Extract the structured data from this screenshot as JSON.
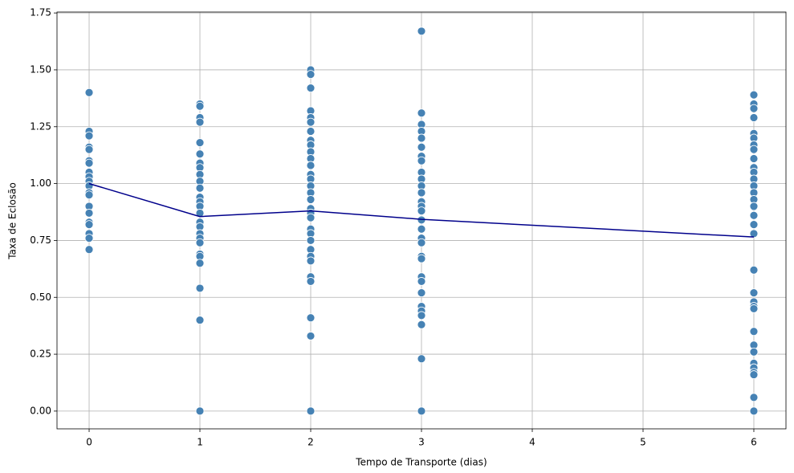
{
  "chart_data": {
    "type": "scatter",
    "xlabel": "Tempo de Transporte (dias)",
    "ylabel": "Taxa de Eclosão",
    "xlim": [
      -0.29,
      6.29
    ],
    "ylim": [
      -0.078,
      1.754
    ],
    "xticks": [
      0,
      1,
      2,
      3,
      4,
      5,
      6
    ],
    "yticks": [
      {
        "value": 0,
        "label": "0.00"
      },
      {
        "value": 0.25,
        "label": "0.25"
      },
      {
        "value": 0.5,
        "label": "0.50"
      },
      {
        "value": 0.75,
        "label": "0.75"
      },
      {
        "value": 1,
        "label": "1.00"
      },
      {
        "value": 1.25,
        "label": "1.25"
      },
      {
        "value": 1.5,
        "label": "1.50"
      },
      {
        "value": 1.75,
        "label": "1.75"
      }
    ],
    "grid": true,
    "series": [
      {
        "type": "scatter",
        "color": "#4682b4",
        "x": [
          0,
          0,
          0,
          0,
          0,
          0,
          0,
          0,
          0,
          0,
          0,
          0,
          0,
          0,
          0,
          0,
          0,
          0,
          0,
          0,
          1,
          1,
          1,
          1,
          1,
          1,
          1,
          1,
          1,
          1,
          1,
          1,
          1,
          1,
          1,
          1,
          1,
          1,
          1,
          1,
          1,
          1,
          1,
          1,
          1,
          1,
          2,
          2,
          2,
          2,
          2,
          2,
          2,
          2,
          2,
          2,
          2,
          2,
          2,
          2,
          2,
          2,
          2,
          2,
          2,
          2,
          2,
          2,
          2,
          2,
          2,
          2,
          2,
          2,
          2,
          2,
          2,
          3,
          3,
          3,
          3,
          3,
          3,
          3,
          3,
          3,
          3,
          3,
          3,
          3,
          3,
          3,
          3,
          3,
          3,
          3,
          3,
          3,
          3,
          3,
          3,
          3,
          3,
          3,
          3,
          3,
          3,
          6,
          6,
          6,
          6,
          6,
          6,
          6,
          6,
          6,
          6,
          6,
          6,
          6,
          6,
          6,
          6,
          6,
          6,
          6,
          6,
          6,
          6,
          6,
          6,
          6,
          6,
          6,
          6,
          6,
          6,
          6,
          6,
          6
        ],
        "values": [
          1.4,
          1.23,
          1.21,
          1.16,
          1.15,
          1.1,
          1.09,
          1.05,
          1.03,
          1.01,
          0.99,
          0.96,
          0.95,
          0.9,
          0.87,
          0.83,
          0.82,
          0.78,
          0.76,
          0.71,
          1.35,
          1.34,
          1.29,
          1.27,
          1.18,
          1.13,
          1.09,
          1.07,
          1.04,
          1.01,
          0.98,
          0.94,
          0.92,
          0.9,
          0.87,
          0.83,
          0.81,
          0.78,
          0.76,
          0.74,
          0.69,
          0.68,
          0.65,
          0.54,
          0.4,
          0.0,
          1.5,
          1.48,
          1.42,
          1.32,
          1.29,
          1.27,
          1.23,
          1.19,
          1.17,
          1.14,
          1.11,
          1.08,
          1.04,
          1.02,
          0.99,
          0.96,
          0.93,
          0.89,
          0.87,
          0.85,
          0.8,
          0.78,
          0.75,
          0.71,
          0.68,
          0.66,
          0.59,
          0.57,
          0.41,
          0.33,
          0.0,
          1.67,
          1.31,
          1.26,
          1.23,
          1.2,
          1.16,
          1.12,
          1.1,
          1.05,
          1.02,
          0.99,
          0.96,
          0.92,
          0.9,
          0.88,
          0.84,
          0.8,
          0.76,
          0.74,
          0.68,
          0.67,
          0.59,
          0.57,
          0.52,
          0.46,
          0.44,
          0.42,
          0.38,
          0.23,
          0.0,
          1.39,
          1.35,
          1.33,
          1.29,
          1.22,
          1.2,
          1.17,
          1.15,
          1.11,
          1.07,
          1.05,
          1.02,
          0.99,
          0.96,
          0.93,
          0.9,
          0.86,
          0.82,
          0.78,
          0.62,
          0.52,
          0.48,
          0.46,
          0.45,
          0.35,
          0.29,
          0.26,
          0.21,
          0.19,
          0.17,
          0.16,
          0.06,
          0.0
        ]
      },
      {
        "type": "line",
        "color": "#00008b",
        "x": [
          0,
          1,
          2,
          3,
          6
        ],
        "values": [
          1.0,
          0.855,
          0.88,
          0.843,
          0.765
        ]
      }
    ]
  }
}
